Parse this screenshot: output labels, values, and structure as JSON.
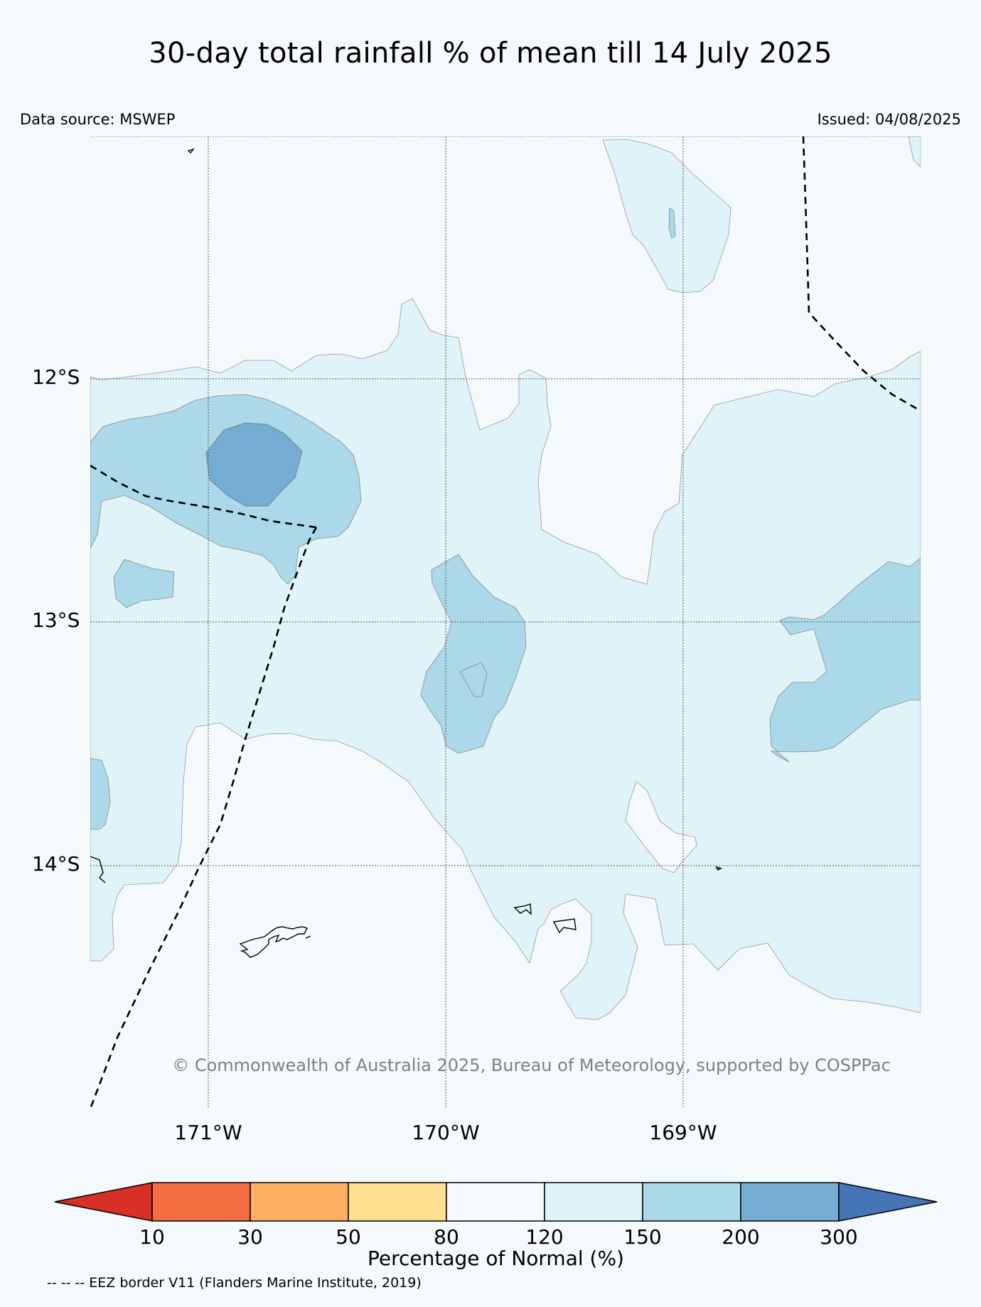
{
  "title": "30-day total rainfall % of mean till 14 July 2025",
  "data_source": "Data source: MSWEP",
  "issued": "Issued: 04/08/2025",
  "latitude_labels": [
    "12°S",
    "13°S",
    "14°S"
  ],
  "longitude_labels": [
    "171°W",
    "170°W",
    "169°W"
  ],
  "copyright": "© Commonwealth of Australia 2025, Bureau of Meteorology, supported by COSPPac",
  "legend": {
    "ticks": [
      "10",
      "30",
      "50",
      "80",
      "120",
      "150",
      "200",
      "300"
    ],
    "label": "Percentage of Normal (%)",
    "colors": [
      "#d73027",
      "#f46d43",
      "#fdae61",
      "#fee090",
      "#f4f9fc",
      "#e0f3f8",
      "#abd9e9",
      "#74add1",
      "#4575b4"
    ]
  },
  "eez_note": "-- -- -- EEZ border V11 (Flanders Marine Institute, 2019)",
  "map": {
    "lon_range": [
      "171.5°W",
      "168°W"
    ],
    "lat_range": [
      "11°S",
      "15°S"
    ],
    "grid": true
  }
}
